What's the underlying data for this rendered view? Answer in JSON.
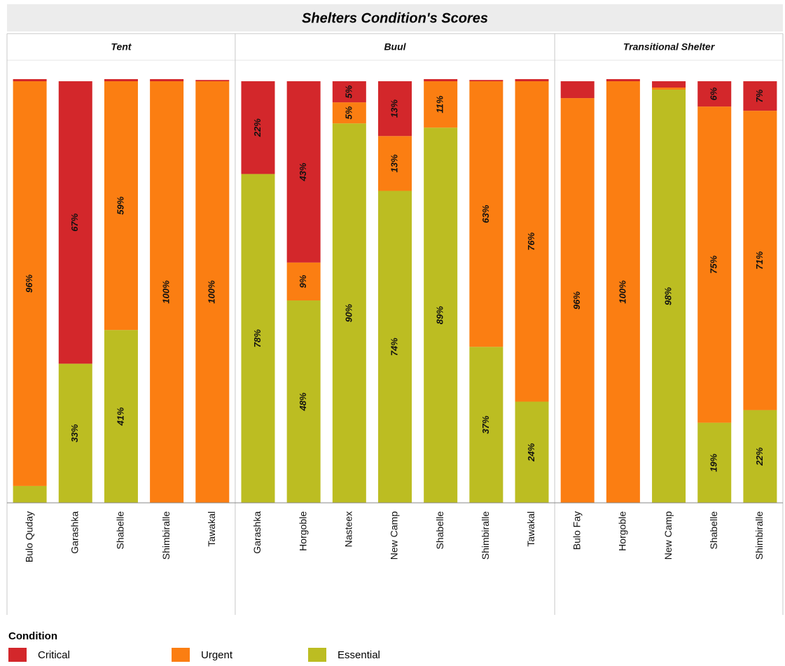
{
  "chart_data": {
    "type": "bar",
    "stacked": true,
    "title": "Shelters Condition's Scores",
    "legend_title": "Condition",
    "panels": [
      {
        "name": "Tent",
        "categories": [
          "Bulo Quday",
          "Garashka",
          "Shabelle",
          "Shimbiralle",
          "Tawakal"
        ]
      },
      {
        "name": "Buul",
        "categories": [
          "Garashka",
          "Horgoble",
          "Nasteex",
          "New Camp",
          "Shabelle",
          "Shimbiralle",
          "Tawakal"
        ]
      },
      {
        "name": "Transitional Shelter",
        "categories": [
          "Bulo Fay",
          "Horgoble",
          "New Camp",
          "Shabelle",
          "Shimbiralle"
        ]
      }
    ],
    "series": [
      {
        "name": "Critical",
        "color": "#d3272b",
        "values": [
          0.5,
          67,
          0.5,
          0.5,
          0.3,
          22,
          43,
          5,
          13,
          0.5,
          0.3,
          0.5,
          4,
          0.5,
          1.5,
          6,
          7
        ],
        "value_labels": [
          null,
          "67%",
          null,
          null,
          null,
          "22%",
          "43%",
          "5%",
          "13%",
          null,
          null,
          null,
          null,
          null,
          null,
          "6%",
          "7%"
        ]
      },
      {
        "name": "Urgent",
        "color": "#fb7e12",
        "values": [
          96,
          0,
          59,
          100,
          100,
          0,
          9,
          5,
          13,
          11,
          63,
          76,
          96,
          100,
          0.5,
          75,
          71
        ],
        "value_labels": [
          "96%",
          null,
          "59%",
          "100%",
          "100%",
          null,
          "9%",
          "5%",
          "13%",
          "11%",
          "63%",
          "76%",
          "96%",
          "100%",
          null,
          "75%",
          "71%"
        ]
      },
      {
        "name": "Essential",
        "color": "#bcbd22",
        "values": [
          4,
          33,
          41,
          0,
          0,
          78,
          48,
          90,
          74,
          89,
          37,
          24,
          0,
          0,
          98,
          19,
          22
        ],
        "value_labels": [
          null,
          "33%",
          "41%",
          null,
          null,
          "78%",
          "48%",
          "90%",
          "74%",
          "89%",
          "37%",
          "24%",
          null,
          null,
          "98%",
          "19%",
          "22%"
        ]
      }
    ]
  }
}
